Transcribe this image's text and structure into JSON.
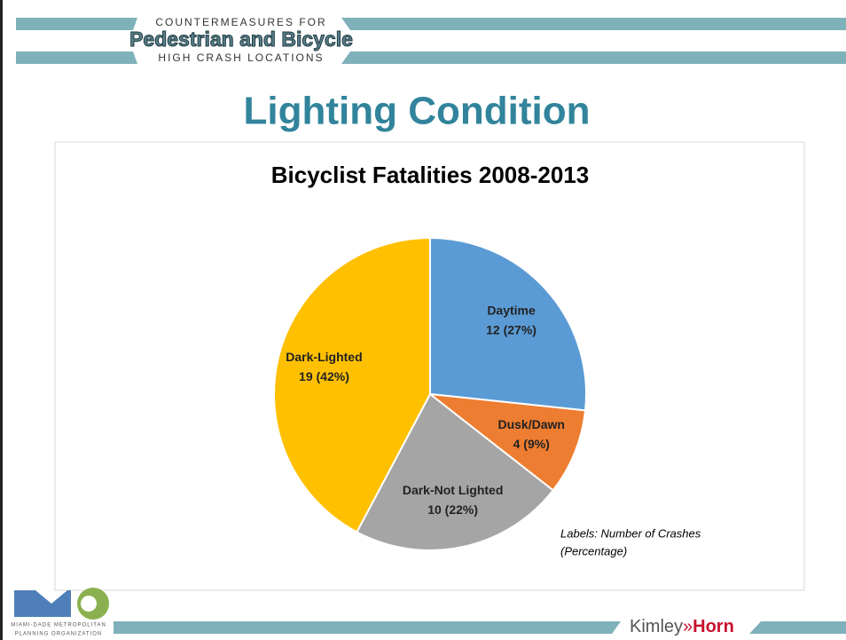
{
  "header": {
    "line1": "COUNTERMEASURES FOR",
    "line2": "Pedestrian and Bicycle",
    "line3": "HIGH CRASH LOCATIONS"
  },
  "slide_title": "Lighting Condition",
  "chart_data": {
    "type": "pie",
    "title": "Bicyclist Fatalities 2008-2013",
    "categories": [
      "Daytime",
      "Dusk/Dawn",
      "Dark-Not Lighted",
      "Dark-Lighted"
    ],
    "values": [
      12,
      4,
      10,
      19
    ],
    "value_labels": [
      "12 (27%)",
      "4 (9%)",
      "10 (22%)",
      "19 (42%)"
    ],
    "colors": [
      "#5b9bd5",
      "#ed7d31",
      "#a5a5a5",
      "#ffc000"
    ],
    "note": [
      "Labels: Number of Crashes",
      "(Percentage)"
    ]
  },
  "footer": {
    "logo_line1": "MIAMI-DADE METROPOLITAN",
    "logo_line2": "PLANNING ORGANIZATION",
    "brand_left": "Kimley",
    "brand_sep": "»",
    "brand_right": "Horn"
  }
}
